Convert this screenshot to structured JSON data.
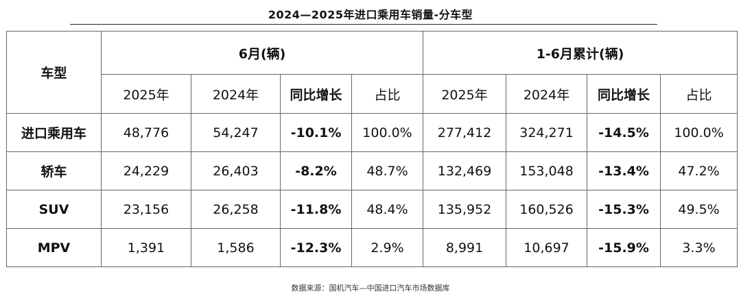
{
  "title": "2024—2025年进口乘用车销量-分车型",
  "table": {
    "corner_label": "车型",
    "group1_label": "6月(辆)",
    "group2_label": "1-6月累计(辆)",
    "sub_headers": [
      "2025年",
      "2024年",
      "同比增长",
      "占比",
      "2025年",
      "2024年",
      "同比增长",
      "占比"
    ],
    "rows": [
      {
        "name": "进口乘用车",
        "cells": [
          "48,776",
          "54,247",
          "-10.1%",
          "100.0%",
          "277,412",
          "324,271",
          "-14.5%",
          "100.0%"
        ]
      },
      {
        "name": "轿车",
        "cells": [
          "24,229",
          "26,403",
          "-8.2%",
          "48.7%",
          "132,469",
          "153,048",
          "-13.4%",
          "47.2%"
        ]
      },
      {
        "name": "SUV",
        "cells": [
          "23,156",
          "26,258",
          "-11.8%",
          "48.4%",
          "135,952",
          "160,526",
          "-15.3%",
          "49.5%"
        ]
      },
      {
        "name": "MPV",
        "cells": [
          "1,391",
          "1,586",
          "-12.3%",
          "2.9%",
          "8,991",
          "10,697",
          "-15.9%",
          "3.3%"
        ]
      }
    ]
  },
  "source": "数据来源：国机汽车—中国进口汽车市场数据库"
}
